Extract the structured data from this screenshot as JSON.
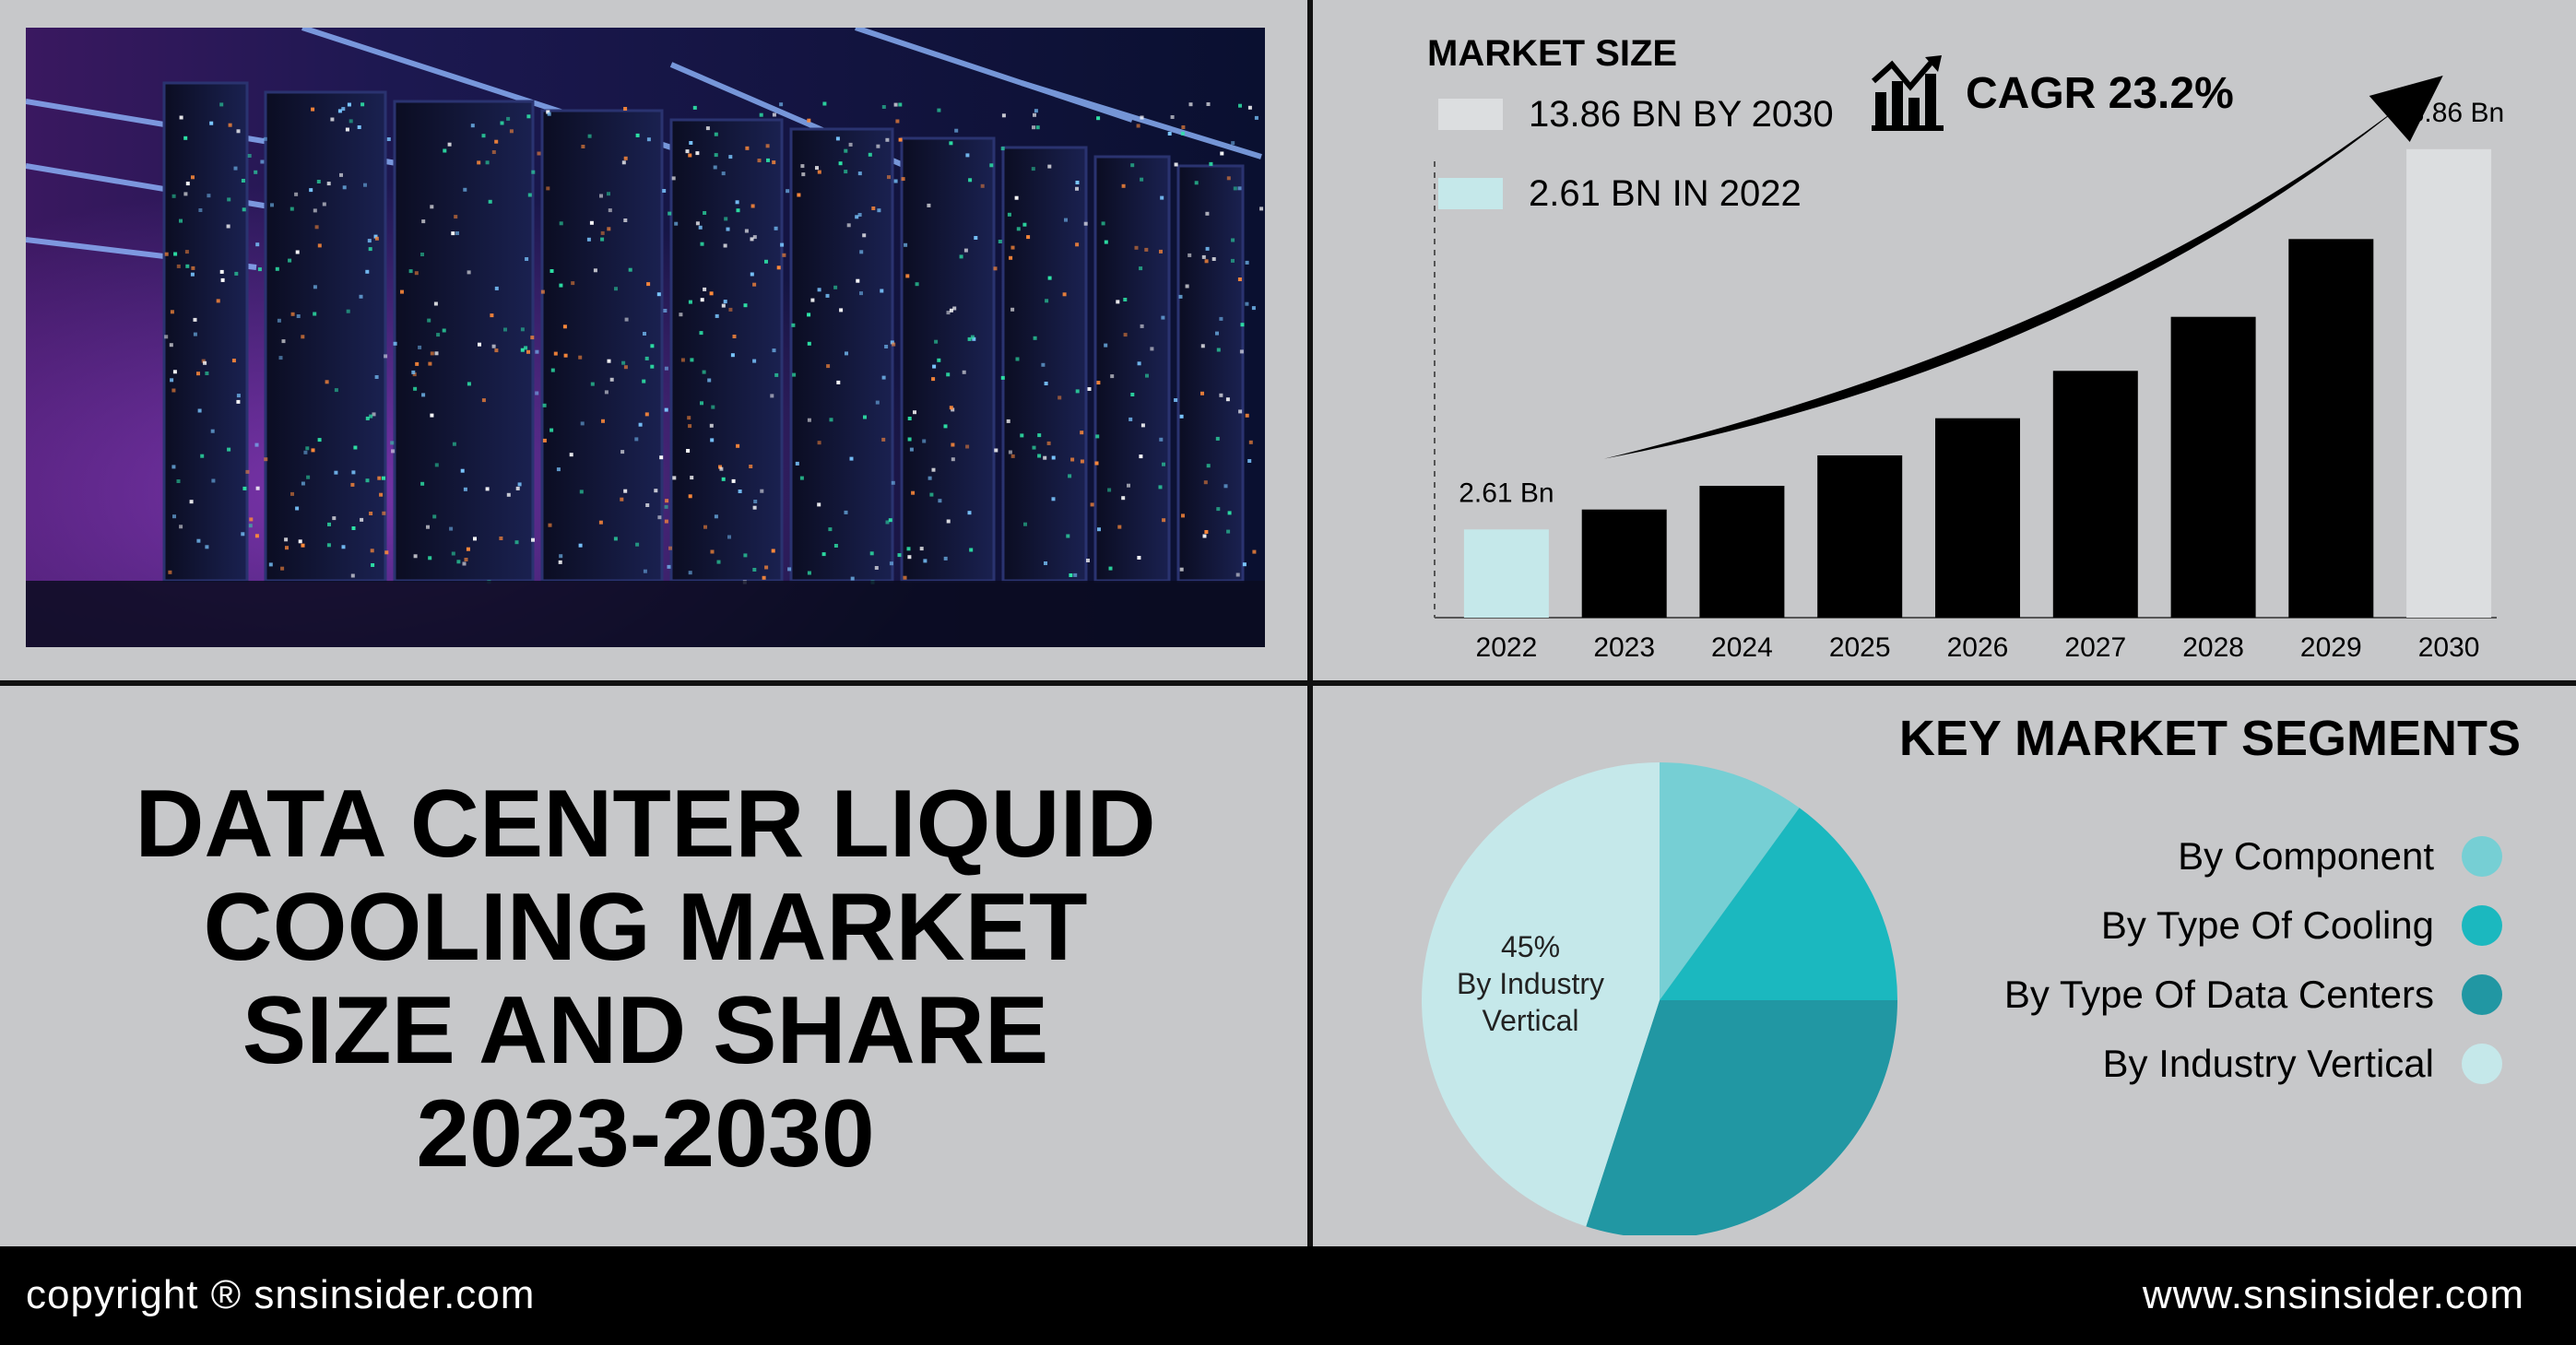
{
  "title_lines": [
    "DATA CENTER LIQUID",
    "COOLING MARKET",
    "SIZE AND SHARE",
    "2023-2030"
  ],
  "market_size": {
    "label": "MARKET SIZE",
    "legend": [
      {
        "label": "13.86 BN BY 2030",
        "color": "#dcdee0"
      },
      {
        "label": "2.61 BN IN 2022",
        "color": "#c5e8ea"
      }
    ],
    "cagr": "CAGR 23.2%"
  },
  "chart_data": [
    {
      "type": "bar",
      "categories": [
        "2022",
        "2023",
        "2024",
        "2025",
        "2026",
        "2027",
        "2028",
        "2029",
        "2030"
      ],
      "values": [
        2.61,
        3.2,
        3.9,
        4.8,
        5.9,
        7.3,
        8.9,
        11.2,
        13.86
      ],
      "data_labels": {
        "2022": "2.61 Bn",
        "2030": "13.86 Bn"
      },
      "colors": {
        "first": "#c5e8ea",
        "middle": "#000000",
        "last": "#dcdee0"
      },
      "ylim": [
        0,
        15
      ]
    },
    {
      "type": "pie",
      "title": "KEY MARKET SEGMENTS",
      "slices": [
        {
          "label": "By Component",
          "value": 10,
          "color": "#76cfd4"
        },
        {
          "label": "By Type Of Cooling",
          "value": 15,
          "color": "#1bb8bf"
        },
        {
          "label": "By Type Of Data Centers",
          "value": 30,
          "color": "#2197a3"
        },
        {
          "label": "By Industry Vertical",
          "value": 45,
          "color": "#c5e8ea"
        }
      ],
      "slice_label": {
        "pct": "45%",
        "line1": "By Industry",
        "line2": "Vertical"
      }
    }
  ],
  "footer": {
    "left": "copyright ® snsinsider.com",
    "right": "www.snsinsider.com"
  }
}
